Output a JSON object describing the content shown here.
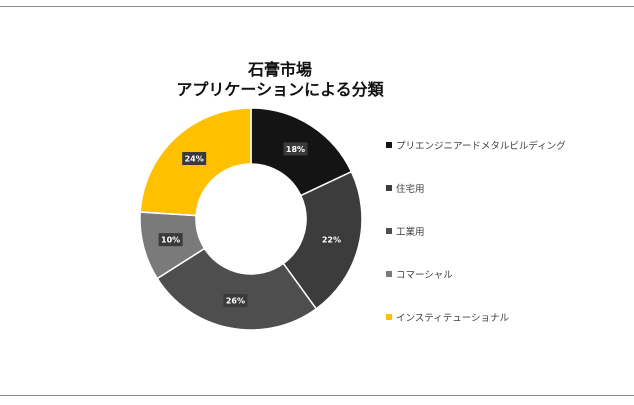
{
  "chart_data": {
    "type": "pie",
    "donut": true,
    "title": [
      "石膏市場",
      "アプリケーションによる分類"
    ],
    "categories": [
      "プリエンジニアードメタルビルディング",
      "住宅用",
      "工業用",
      "コマーシャル",
      "インスティテューショナル"
    ],
    "values": [
      18,
      22,
      26,
      10,
      24
    ],
    "value_labels": [
      "18%",
      "22%",
      "26%",
      "10%",
      "24%"
    ],
    "colors": [
      "#141414",
      "#3c3c3c",
      "#4e4e4e",
      "#7a7a7a",
      "#ffc000"
    ],
    "legend": "right"
  }
}
